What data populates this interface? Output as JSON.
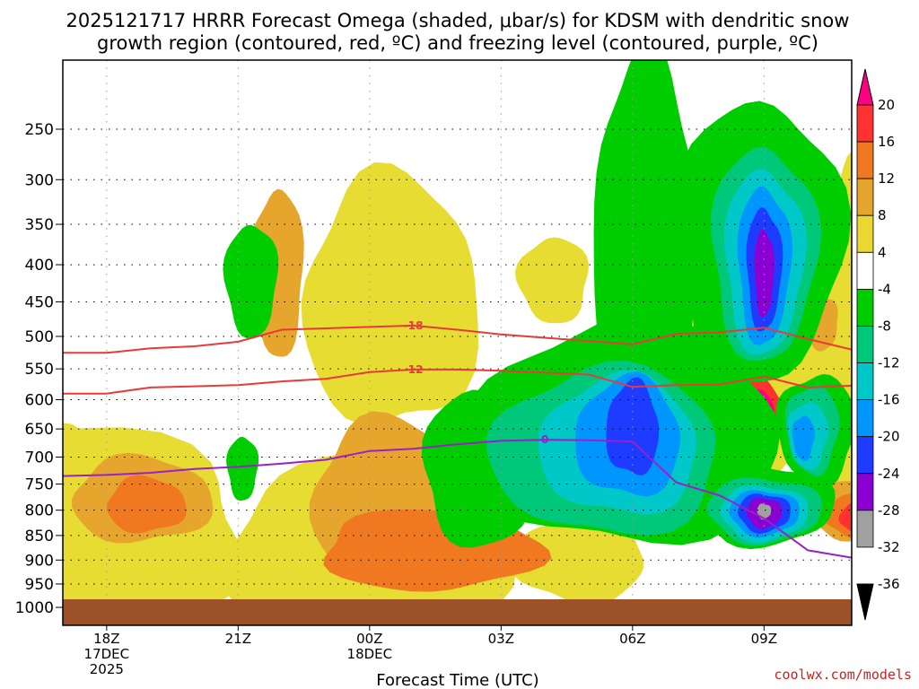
{
  "chart_data": {
    "type": "contour",
    "title_line1": "2025121717 HRRR Forecast Omega (shaded, μbar/s) for KDSM with dendritic snow",
    "title_line2": "growth region (contoured, red, ºC) and freezing level (contoured, purple, ºC)",
    "xlabel": "Forecast Time (UTC)",
    "x_domain_hours": [
      -1,
      17
    ],
    "x_ticks": [
      {
        "h": 0,
        "l1": "18Z",
        "l2": "17DEC",
        "l3": "2025"
      },
      {
        "h": 3,
        "l1": "21Z",
        "l2": "",
        "l3": ""
      },
      {
        "h": 6,
        "l1": "00Z",
        "l2": "18DEC",
        "l3": ""
      },
      {
        "h": 9,
        "l1": "03Z",
        "l2": "",
        "l3": ""
      },
      {
        "h": 12,
        "l1": "06Z",
        "l2": "",
        "l3": ""
      },
      {
        "h": 15,
        "l1": "09Z",
        "l2": "",
        "l3": ""
      }
    ],
    "y_ticks": [
      250,
      300,
      350,
      400,
      450,
      500,
      550,
      600,
      650,
      700,
      750,
      800,
      850,
      900,
      950,
      1000
    ],
    "colorbar": {
      "labels": [
        "20",
        "16",
        "12",
        "8",
        "4",
        "-4",
        "-8",
        "-12",
        "-16",
        "-20",
        "-24",
        "-28",
        "-32",
        "-36"
      ],
      "colors": [
        "#ff0082",
        "#ff3232",
        "#f07820",
        "#e6a52d",
        "#ebd732",
        "#ffffff",
        "#00cd00",
        "#00c87a",
        "#00c8c8",
        "#0096ff",
        "#1e3cff",
        "#8b00d2",
        "#a0a0a0",
        "#000000"
      ]
    },
    "omega_fields": [
      {
        "level": 4,
        "color": "#e6dc32",
        "blobs": [
          [
            -1.3,
            850,
            4.6,
            230,
            8
          ],
          [
            6,
            880,
            3.2,
            210,
            8
          ],
          [
            6.5,
            450,
            2.0,
            200,
            5
          ],
          [
            10.8,
            900,
            1.5,
            90,
            8
          ],
          [
            10.2,
            420,
            0.8,
            60,
            2
          ],
          [
            13.2,
            540,
            0.7,
            150,
            8
          ],
          [
            14.4,
            610,
            1.7,
            170,
            8
          ],
          [
            17.0,
            420,
            0.6,
            190,
            2
          ],
          [
            -2.0,
            850,
            2.2,
            250,
            8
          ],
          [
            16.6,
            610,
            0.9,
            200,
            8
          ]
        ]
      },
      {
        "level": 8,
        "color": "#e6a52d",
        "blobs": [
          [
            0.8,
            780,
            1.6,
            85,
            8
          ],
          [
            6.4,
            785,
            1.7,
            170,
            8
          ],
          [
            3.9,
            410,
            0.6,
            120,
            3
          ],
          [
            16.9,
            800,
            0.9,
            60,
            8
          ],
          [
            16.3,
            480,
            0.4,
            40,
            5
          ]
        ]
      },
      {
        "level": 12,
        "color": "#f07820",
        "blobs": [
          [
            7.4,
            880,
            2.5,
            85,
            8
          ],
          [
            0.9,
            790,
            0.9,
            55,
            8
          ],
          [
            17.1,
            810,
            0.7,
            45,
            8
          ],
          [
            14.6,
            620,
            0.6,
            75,
            8
          ]
        ]
      },
      {
        "level": 16,
        "color": "#ff3232",
        "blobs": [
          [
            14.8,
            620,
            0.55,
            65,
            8
          ],
          [
            17.2,
            815,
            0.45,
            35,
            8
          ]
        ]
      },
      {
        "level": 20,
        "color": "#ff0082",
        "blobs": [
          [
            14.85,
            620,
            0.35,
            40,
            8
          ]
        ]
      },
      {
        "level": -4,
        "color": "#00cd00",
        "blobs": [
          [
            11.8,
            660,
            3.6,
            210,
            8
          ],
          [
            8.6,
            720,
            1.4,
            150,
            8
          ],
          [
            14.9,
            370,
            1.9,
            200,
            8
          ],
          [
            12.3,
            360,
            1.2,
            260,
            3
          ],
          [
            3.3,
            420,
            0.6,
            80,
            2
          ],
          [
            15.0,
            790,
            1.6,
            80,
            8
          ],
          [
            3.1,
            720,
            0.35,
            60,
            8
          ],
          [
            16.2,
            650,
            0.9,
            100,
            8
          ]
        ]
      },
      {
        "level": -8,
        "color": "#00c87a",
        "blobs": [
          [
            11.4,
            690,
            2.6,
            160,
            8
          ],
          [
            15.0,
            385,
            1.2,
            150,
            3
          ],
          [
            15.0,
            800,
            1.3,
            65,
            8
          ],
          [
            16.1,
            650,
            0.6,
            80,
            8
          ]
        ]
      },
      {
        "level": -12,
        "color": "#00c8c8",
        "blobs": [
          [
            11.7,
            680,
            1.8,
            130,
            8
          ],
          [
            15.0,
            395,
            0.9,
            130,
            3
          ],
          [
            15.0,
            805,
            1.0,
            55,
            8
          ],
          [
            16.0,
            660,
            0.45,
            60,
            8
          ]
        ]
      },
      {
        "level": -16,
        "color": "#0096ff",
        "blobs": [
          [
            11.9,
            665,
            1.2,
            110,
            8
          ],
          [
            15.0,
            400,
            0.6,
            110,
            3
          ],
          [
            15.0,
            805,
            0.8,
            45,
            8
          ],
          [
            15.9,
            665,
            0.25,
            40,
            8
          ]
        ]
      },
      {
        "level": -20,
        "color": "#1e3cff",
        "blobs": [
          [
            12.0,
            650,
            0.6,
            85,
            8
          ],
          [
            15.0,
            405,
            0.4,
            85,
            3
          ],
          [
            15.0,
            805,
            0.6,
            38,
            8
          ]
        ]
      },
      {
        "level": -24,
        "color": "#8b00d2",
        "blobs": [
          [
            15.0,
            410,
            0.22,
            60,
            3
          ],
          [
            15.0,
            805,
            0.4,
            30,
            8
          ]
        ]
      },
      {
        "level": -32,
        "color": "#a0a0a0",
        "blobs": [
          [
            15.0,
            802,
            0.16,
            15,
            8
          ]
        ]
      }
    ],
    "dgz_minus18": {
      "label": "-18",
      "hours": [
        -1,
        0,
        1,
        2,
        3,
        4,
        5,
        6,
        7,
        8,
        9,
        10,
        11,
        12,
        13,
        14,
        15,
        16,
        17
      ],
      "pres": [
        525,
        525,
        518,
        515,
        508,
        490,
        488,
        486,
        484,
        490,
        497,
        502,
        507,
        512,
        496,
        494,
        487,
        504,
        520
      ]
    },
    "dgz_minus12": {
      "label": "-12",
      "hours": [
        -1,
        0,
        1,
        2,
        3,
        4,
        5,
        6,
        7,
        8,
        9,
        10,
        11,
        12,
        13,
        14,
        15,
        16,
        17
      ],
      "pres": [
        590,
        590,
        580,
        578,
        576,
        570,
        566,
        555,
        551,
        551,
        553,
        556,
        559,
        579,
        576,
        575,
        562,
        580,
        577
      ]
    },
    "freezing_level": {
      "label": "0",
      "hours": [
        -1,
        0,
        1,
        2,
        3,
        4,
        5,
        6,
        7,
        8,
        9,
        10,
        11,
        12,
        13,
        14,
        15,
        16,
        17
      ],
      "pres": [
        735,
        733,
        729,
        722,
        718,
        712,
        705,
        689,
        685,
        677,
        671,
        669,
        670,
        672,
        747,
        772,
        816,
        880,
        895
      ]
    },
    "credit": "coolwx.com/models"
  }
}
